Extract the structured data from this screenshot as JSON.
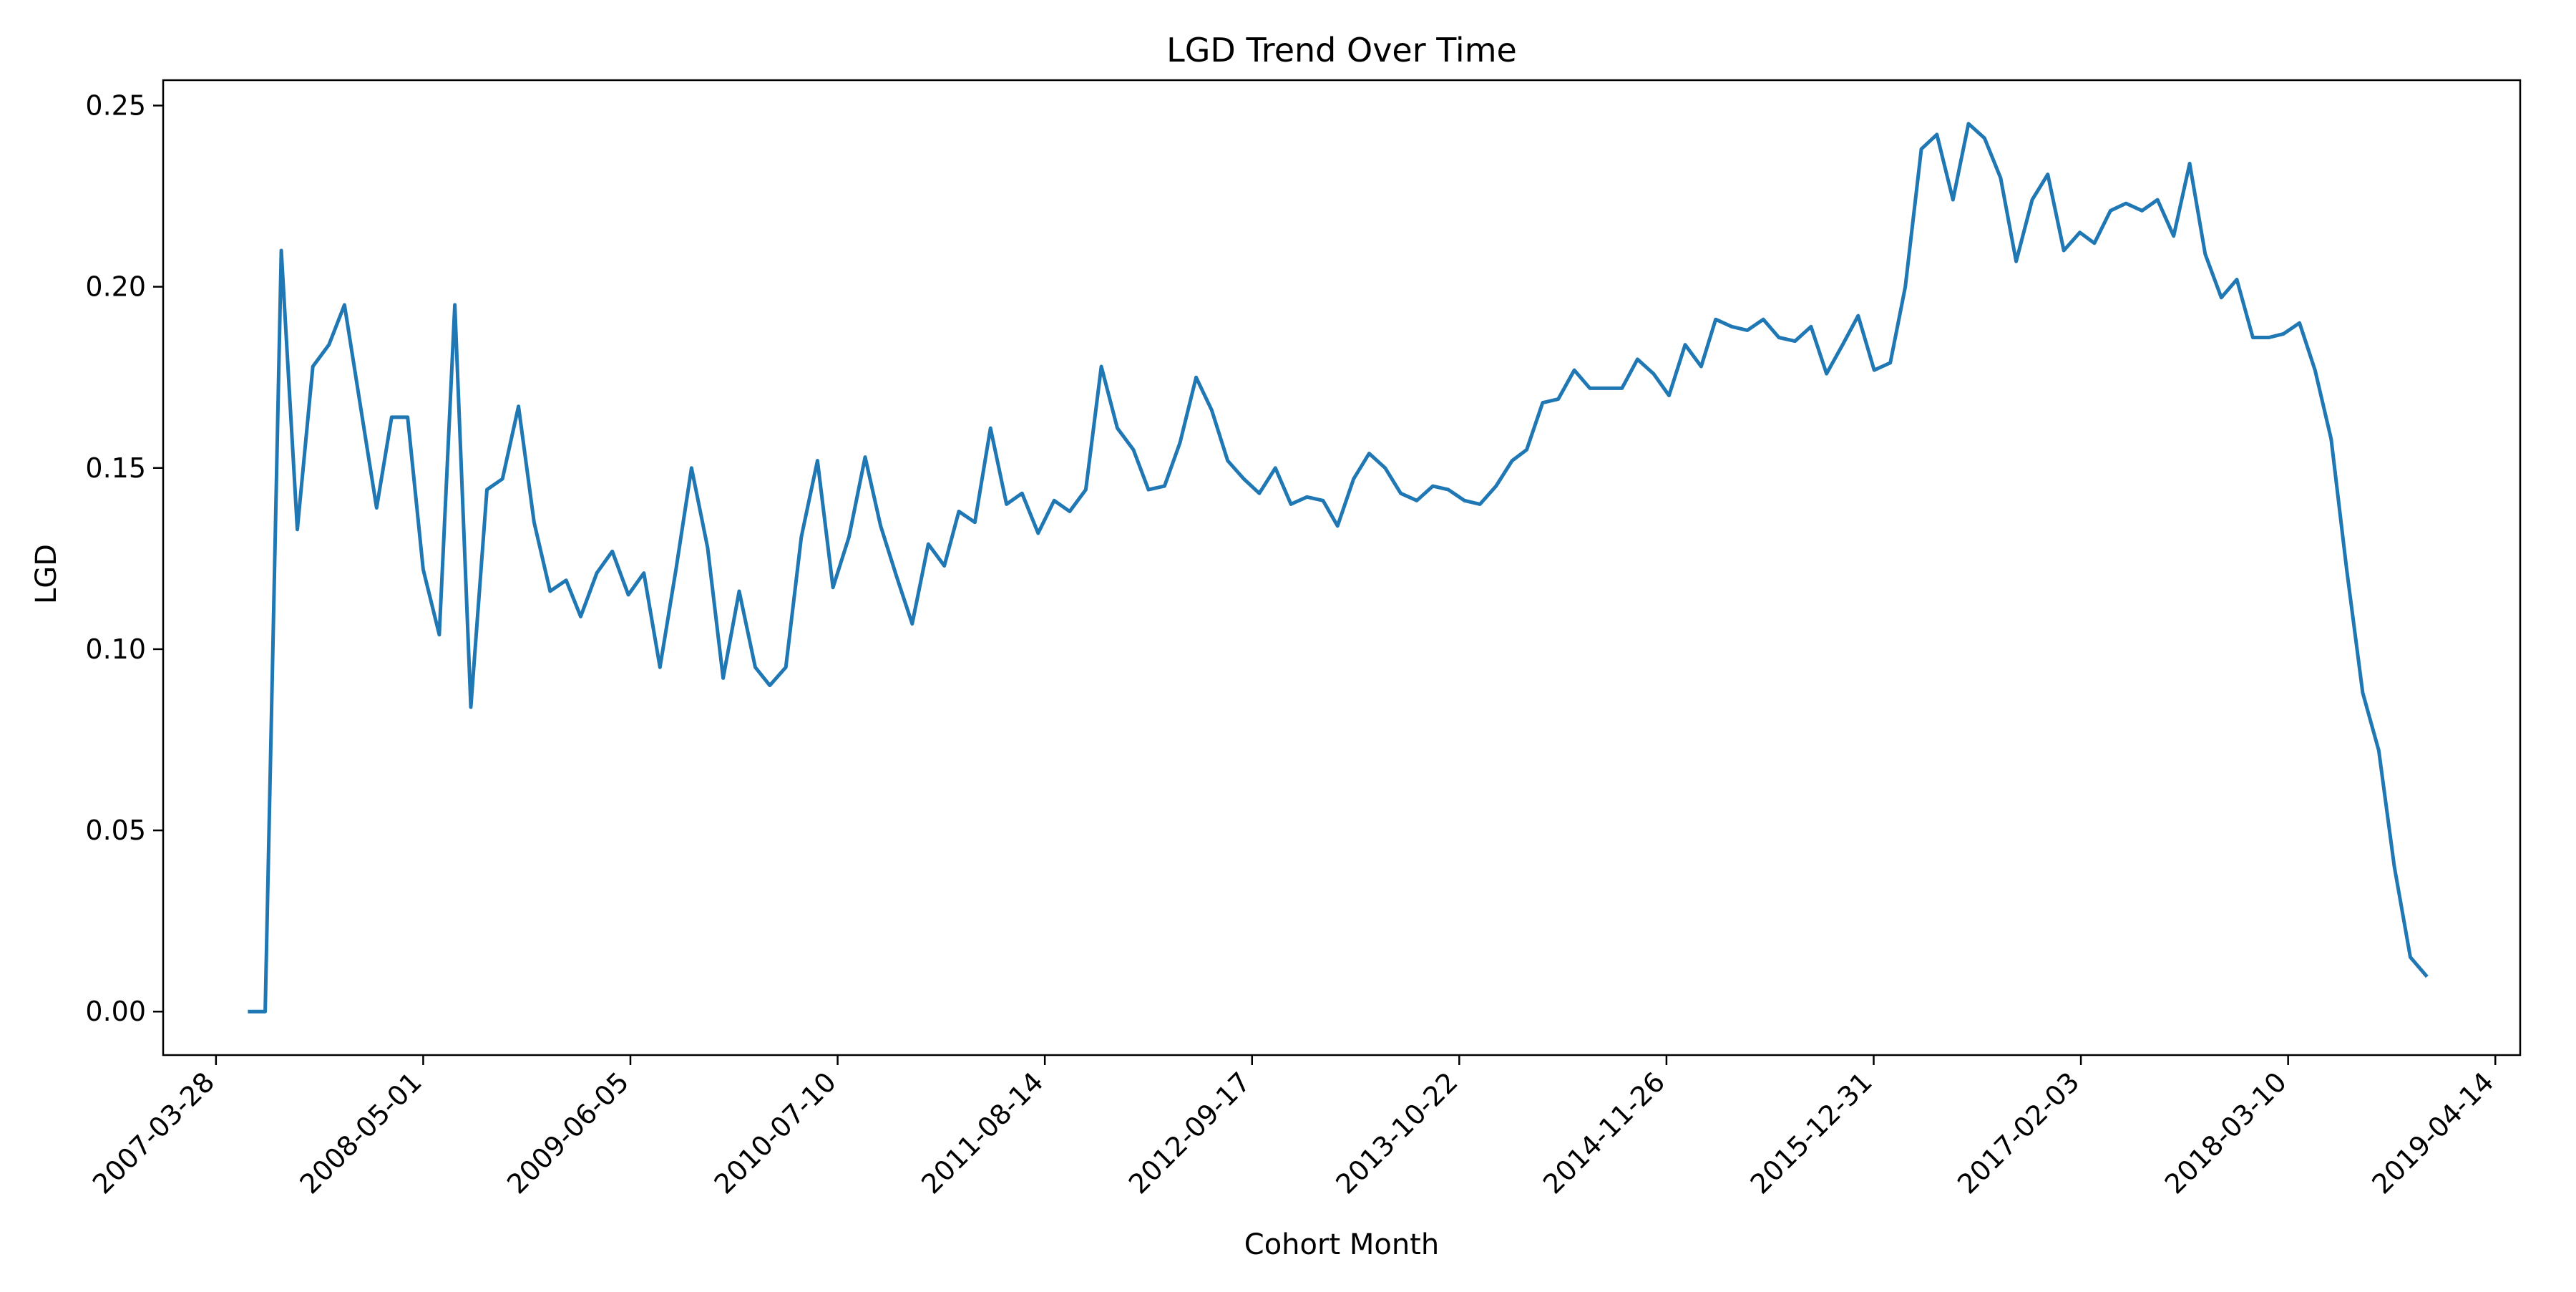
{
  "chart_data": {
    "type": "line",
    "title": "LGD Trend Over Time",
    "xlabel": "Cohort Month",
    "ylabel": "LGD",
    "x_ticks": [
      "2007-03-28",
      "2008-05-01",
      "2009-06-05",
      "2010-07-10",
      "2011-08-14",
      "2012-09-17",
      "2013-10-22",
      "2014-11-26",
      "2015-12-31",
      "2017-02-03",
      "2018-03-10",
      "2019-04-14"
    ],
    "y_ticks": [
      "0.00",
      "0.05",
      "0.10",
      "0.15",
      "0.20",
      "0.25"
    ],
    "ylim": [
      -0.012,
      0.257
    ],
    "xlim": [
      "2006-12-16",
      "2019-06-01"
    ],
    "grid": false,
    "line_color": "#1f77b4",
    "series": [
      {
        "x": [
          "2007-06-01",
          "2007-07-01",
          "2007-08-01",
          "2007-09-01",
          "2007-10-01",
          "2007-11-01",
          "2007-12-01",
          "2008-01-01",
          "2008-02-01",
          "2008-03-01",
          "2008-04-01",
          "2008-05-01",
          "2008-06-01",
          "2008-07-01",
          "2008-08-01",
          "2008-09-01",
          "2008-10-01",
          "2008-11-01",
          "2008-12-01",
          "2009-01-01",
          "2009-02-01",
          "2009-03-01",
          "2009-04-01",
          "2009-05-01",
          "2009-06-01",
          "2009-07-01",
          "2009-08-01",
          "2009-09-01",
          "2009-10-01",
          "2009-11-01",
          "2009-12-01",
          "2010-01-01",
          "2010-02-01",
          "2010-03-01",
          "2010-04-01",
          "2010-05-01",
          "2010-06-01",
          "2010-07-01",
          "2010-08-01",
          "2010-09-01",
          "2010-10-01",
          "2010-11-01",
          "2010-12-01",
          "2011-01-01",
          "2011-02-01",
          "2011-03-01",
          "2011-04-01",
          "2011-05-01",
          "2011-06-01",
          "2011-07-01",
          "2011-08-01",
          "2011-09-01",
          "2011-10-01",
          "2011-11-01",
          "2011-12-01",
          "2012-01-01",
          "2012-02-01",
          "2012-03-01",
          "2012-04-01",
          "2012-05-01",
          "2012-06-01",
          "2012-07-01",
          "2012-08-01",
          "2012-09-01",
          "2012-10-01",
          "2012-11-01",
          "2012-12-01",
          "2013-01-01",
          "2013-02-01",
          "2013-03-01",
          "2013-04-01",
          "2013-05-01",
          "2013-06-01",
          "2013-07-01",
          "2013-08-01",
          "2013-09-01",
          "2013-10-01",
          "2013-11-01",
          "2013-12-01",
          "2014-01-01",
          "2014-02-01",
          "2014-03-01",
          "2014-04-01",
          "2014-05-01",
          "2014-06-01",
          "2014-07-01",
          "2014-08-01",
          "2014-09-01",
          "2014-10-01",
          "2014-11-01",
          "2014-12-01",
          "2015-01-01",
          "2015-02-01",
          "2015-03-01",
          "2015-04-01",
          "2015-05-01",
          "2015-06-01",
          "2015-07-01",
          "2015-08-01",
          "2015-09-01",
          "2015-10-01",
          "2015-11-01",
          "2015-12-01",
          "2016-01-01",
          "2016-02-01",
          "2016-03-01",
          "2016-04-01",
          "2016-05-01",
          "2016-06-01",
          "2016-07-01",
          "2016-08-01",
          "2016-09-01",
          "2016-10-01",
          "2016-11-01",
          "2016-12-01",
          "2017-01-01",
          "2017-02-01",
          "2017-03-01",
          "2017-04-01",
          "2017-05-01",
          "2017-06-01",
          "2017-07-01",
          "2017-08-01",
          "2017-09-01",
          "2017-10-01",
          "2017-11-01",
          "2017-12-01",
          "2018-01-01",
          "2018-02-01",
          "2018-03-01",
          "2018-04-01",
          "2018-05-01",
          "2018-06-01",
          "2018-07-01",
          "2018-08-01",
          "2018-09-01",
          "2018-10-01",
          "2018-11-01",
          "2018-12-01"
        ],
        "y": [
          0.0,
          0.0,
          0.21,
          0.133,
          0.178,
          0.184,
          0.195,
          0.167,
          0.139,
          0.164,
          0.164,
          0.122,
          0.104,
          0.195,
          0.084,
          0.144,
          0.147,
          0.167,
          0.135,
          0.116,
          0.119,
          0.109,
          0.121,
          0.127,
          0.115,
          0.121,
          0.095,
          0.122,
          0.15,
          0.128,
          0.092,
          0.116,
          0.095,
          0.09,
          0.095,
          0.131,
          0.152,
          0.117,
          0.131,
          0.153,
          0.134,
          0.12,
          0.107,
          0.129,
          0.123,
          0.138,
          0.135,
          0.161,
          0.14,
          0.143,
          0.132,
          0.141,
          0.138,
          0.144,
          0.178,
          0.161,
          0.155,
          0.144,
          0.145,
          0.157,
          0.175,
          0.166,
          0.152,
          0.147,
          0.143,
          0.15,
          0.14,
          0.142,
          0.141,
          0.134,
          0.147,
          0.154,
          0.15,
          0.143,
          0.141,
          0.145,
          0.144,
          0.141,
          0.14,
          0.145,
          0.152,
          0.155,
          0.168,
          0.169,
          0.177,
          0.172,
          0.172,
          0.172,
          0.18,
          0.176,
          0.17,
          0.184,
          0.178,
          0.191,
          0.189,
          0.188,
          0.191,
          0.186,
          0.185,
          0.189,
          0.176,
          0.184,
          0.192,
          0.177,
          0.179,
          0.2,
          0.238,
          0.242,
          0.224,
          0.245,
          0.241,
          0.23,
          0.207,
          0.224,
          0.231,
          0.21,
          0.215,
          0.212,
          0.221,
          0.223,
          0.221,
          0.224,
          0.214,
          0.234,
          0.209,
          0.197,
          0.202,
          0.186,
          0.186,
          0.187,
          0.19,
          0.177,
          0.158,
          0.122,
          0.088,
          0.072,
          0.04,
          0.015,
          0.01
        ]
      }
    ]
  }
}
